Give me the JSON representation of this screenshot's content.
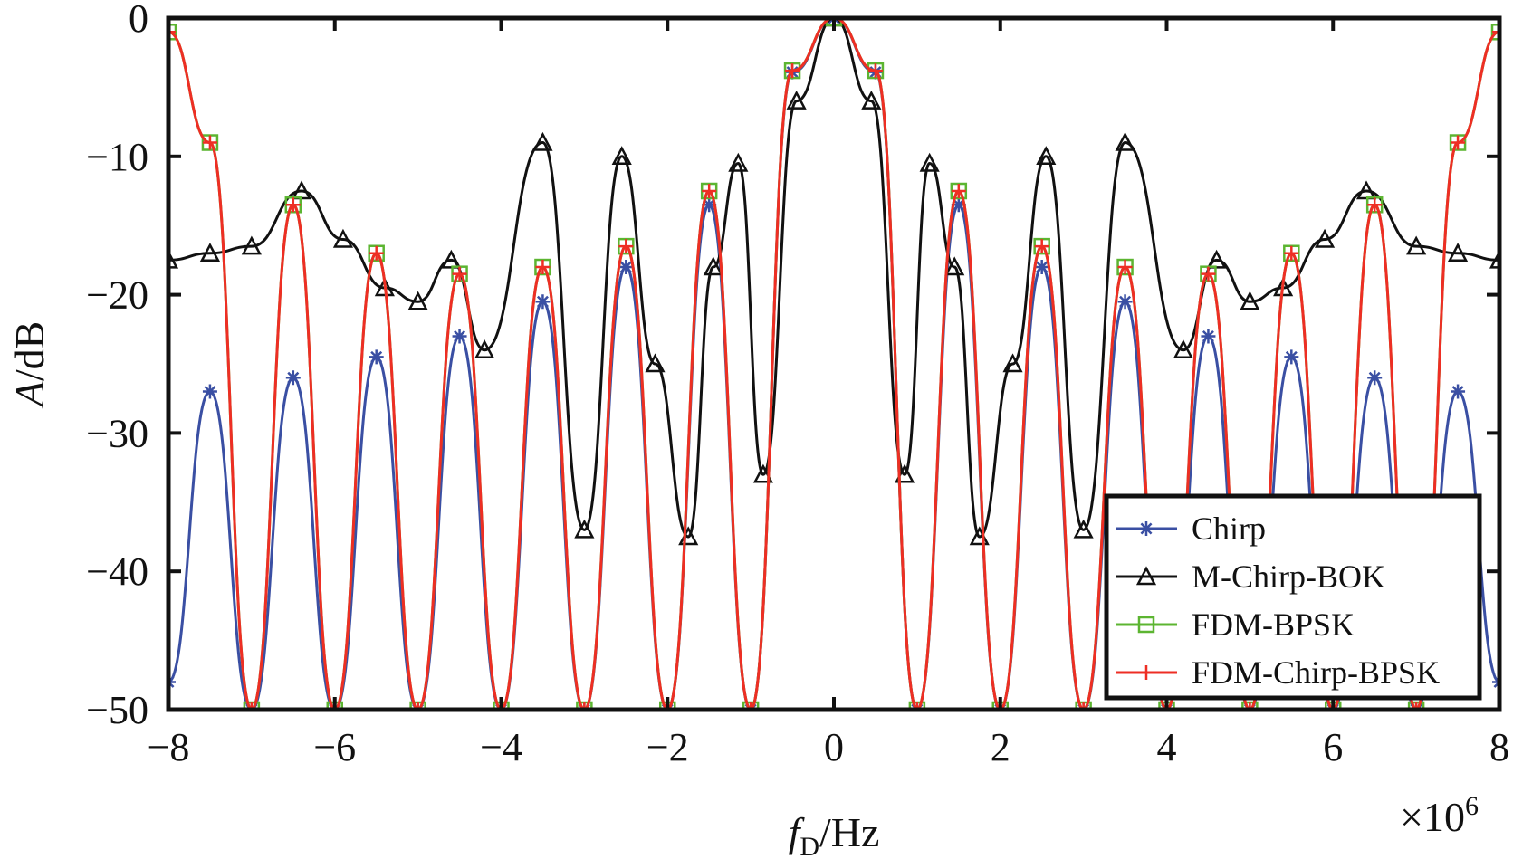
{
  "chart_data": {
    "type": "line",
    "xlabel_main": "f",
    "xlabel_sub": "D",
    "xlabel_unit": "/Hz",
    "ylabel_main": "A",
    "ylabel_unit": "/dB",
    "x_multiplier_base": "×10",
    "x_multiplier_exp": "6",
    "xlim": [
      -8,
      8
    ],
    "ylim": [
      -50,
      0
    ],
    "xticks": [
      "−8",
      "−6",
      "−4",
      "−2",
      "0",
      "2",
      "4",
      "6",
      "8"
    ],
    "yticks": [
      "0",
      "−10",
      "−20",
      "−30",
      "−40",
      "−50"
    ],
    "legend_position": "bottom-right",
    "grid": false,
    "series": [
      {
        "name": "Chirp",
        "color": "#3a4fa3",
        "marker": "asterisk",
        "x": [
          -8,
          -7.5,
          -7,
          -6.5,
          -6,
          -5.5,
          -5,
          -4.5,
          -4,
          -3.5,
          -3,
          -2.5,
          -2,
          -1.5,
          -1,
          -0.5,
          0,
          0.5,
          1,
          1.5,
          2,
          2.5,
          3,
          3.5,
          4,
          4.5,
          5,
          5.5,
          6,
          6.5,
          7,
          7.5,
          8
        ],
        "y": [
          -48,
          -27,
          -50,
          -26,
          -50,
          -24.5,
          -50,
          -23,
          -50,
          -20.5,
          -50,
          -18,
          -50,
          -13.5,
          -50,
          -3.9,
          0,
          -3.9,
          -50,
          -13.5,
          -50,
          -18,
          -50,
          -20.5,
          -50,
          -23,
          -50,
          -24.5,
          -50,
          -26,
          -50,
          -27,
          -48
        ]
      },
      {
        "name": "M-Chirp-BOK",
        "color": "#111111",
        "marker": "triangle",
        "x": [
          -8,
          -7.5,
          -7,
          -6.4,
          -5.9,
          -5.4,
          -5.0,
          -4.6,
          -4.2,
          -3.5,
          -3.0,
          -2.55,
          -2.15,
          -1.75,
          -1.45,
          -1.15,
          -0.85,
          -0.45,
          0,
          0.45,
          0.85,
          1.15,
          1.45,
          1.75,
          2.15,
          2.55,
          3.0,
          3.5,
          4.2,
          4.6,
          5.0,
          5.4,
          5.9,
          6.4,
          7,
          7.5,
          8
        ],
        "y": [
          -17.5,
          -17,
          -16.5,
          -12.5,
          -16,
          -19.5,
          -20.5,
          -17.5,
          -24,
          -9,
          -37,
          -10,
          -25,
          -37.5,
          -18,
          -10.5,
          -33,
          -6,
          0,
          -6,
          -33,
          -10.5,
          -18,
          -37.5,
          -25,
          -10,
          -37,
          -9,
          -24,
          -17.5,
          -20.5,
          -19.5,
          -16,
          -12.5,
          -16.5,
          -17,
          -17.5
        ]
      },
      {
        "name": "FDM-BPSK",
        "color": "#5cb531",
        "marker": "square",
        "x": [
          -8,
          -7.5,
          -7,
          -6.5,
          -6,
          -5.5,
          -5,
          -4.5,
          -4,
          -3.5,
          -3,
          -2.5,
          -2,
          -1.5,
          -1,
          -0.5,
          0,
          0.5,
          1,
          1.5,
          2,
          2.5,
          3,
          3.5,
          4,
          4.5,
          5,
          5.5,
          6,
          6.5,
          7,
          7.5,
          8
        ],
        "y": [
          -1,
          -9,
          -50,
          -13.5,
          -50,
          -17,
          -50,
          -18.5,
          -50,
          -18,
          -50,
          -16.5,
          -50,
          -12.5,
          -50,
          -3.8,
          0,
          -3.8,
          -50,
          -12.5,
          -50,
          -16.5,
          -50,
          -18,
          -50,
          -18.5,
          -50,
          -17,
          -50,
          -13.5,
          -50,
          -9,
          -1
        ]
      },
      {
        "name": "FDM-Chirp-BPSK",
        "color": "#ee2e24",
        "marker": "plus",
        "x": [
          -8,
          -7.5,
          -7,
          -6.5,
          -6,
          -5.5,
          -5,
          -4.5,
          -4,
          -3.5,
          -3,
          -2.5,
          -2,
          -1.5,
          -1,
          -0.5,
          0,
          0.5,
          1,
          1.5,
          2,
          2.5,
          3,
          3.5,
          4,
          4.5,
          5,
          5.5,
          6,
          6.5,
          7,
          7.5,
          8
        ],
        "y": [
          -1,
          -9,
          -50,
          -13.5,
          -50,
          -17,
          -50,
          -18.5,
          -50,
          -18,
          -50,
          -16.5,
          -50,
          -12.5,
          -50,
          -3.8,
          0,
          -3.8,
          -50,
          -12.5,
          -50,
          -16.5,
          -50,
          -18,
          -50,
          -18.5,
          -50,
          -17,
          -50,
          -13.5,
          -50,
          -9,
          -1
        ]
      }
    ]
  }
}
